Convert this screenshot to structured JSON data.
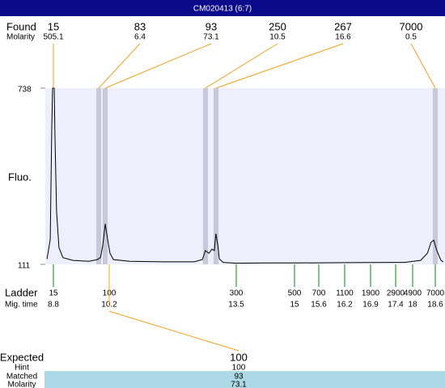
{
  "header": {
    "title": "CM020413 (6:7)"
  },
  "found": {
    "label": "Found",
    "sublabel": "Molarity",
    "peaks": [
      {
        "size": 15,
        "molarity": 505.1
      },
      {
        "size": 83,
        "molarity": 6.4
      },
      {
        "size": 93,
        "molarity": 73.1
      },
      {
        "size": 250,
        "molarity": 10.5
      },
      {
        "size": 267,
        "molarity": 16.6
      },
      {
        "size": 7000,
        "molarity": 0.5
      }
    ]
  },
  "ladder": {
    "label": "Ladder",
    "sublabel": "Mig. time",
    "peaks": [
      {
        "size": 15,
        "time": 8.8
      },
      {
        "size": 100,
        "time": 10.2
      },
      {
        "size": 300,
        "time": 13.5
      },
      {
        "size": 500,
        "time": 15
      },
      {
        "size": 700,
        "time": 15.6
      },
      {
        "size": 1100,
        "time": 16.2
      },
      {
        "size": 1900,
        "time": 16.9
      },
      {
        "size": 2900,
        "time": 17.4
      },
      {
        "size": 4900,
        "time": 18
      },
      {
        "size": 7000,
        "time": 18.6
      }
    ]
  },
  "expected": {
    "label": "Expected",
    "value": 100,
    "hint_label": "Hint",
    "hint": 100,
    "matched_label": "Matched",
    "matched": 93,
    "molarity_label": "Molarity",
    "molarity": 73.1
  },
  "chart_data": {
    "type": "line",
    "ylabel": "Fluo.",
    "ylim": [
      111,
      738
    ],
    "yticks": [
      111,
      738
    ],
    "color": "#000000",
    "x": [
      8.64,
      8.72,
      8.76,
      8.78,
      8.82,
      8.84,
      8.88,
      8.94,
      9.04,
      9.29,
      9.69,
      9.9,
      9.98,
      10.04,
      10.1,
      10.16,
      10.22,
      10.31,
      10.73,
      11.57,
      12.41,
      12.62,
      12.7,
      12.79,
      12.87,
      12.93,
      12.97,
      13.02,
      13.06,
      13.16,
      13.5,
      14.29,
      15,
      16.2,
      17.4,
      17.71,
      18.21,
      18.39,
      18.49,
      18.56,
      18.64,
      18.75,
      18.81
    ],
    "values": [
      130,
      200,
      600,
      738,
      738,
      560,
      300,
      170,
      135,
      125,
      122,
      128,
      135,
      180,
      255,
      200,
      150,
      128,
      122,
      120,
      120,
      128,
      160,
      150,
      165,
      160,
      220,
      180,
      130,
      118,
      115,
      116,
      116,
      117,
      118,
      118,
      125,
      150,
      190,
      197,
      160,
      125,
      120
    ]
  }
}
